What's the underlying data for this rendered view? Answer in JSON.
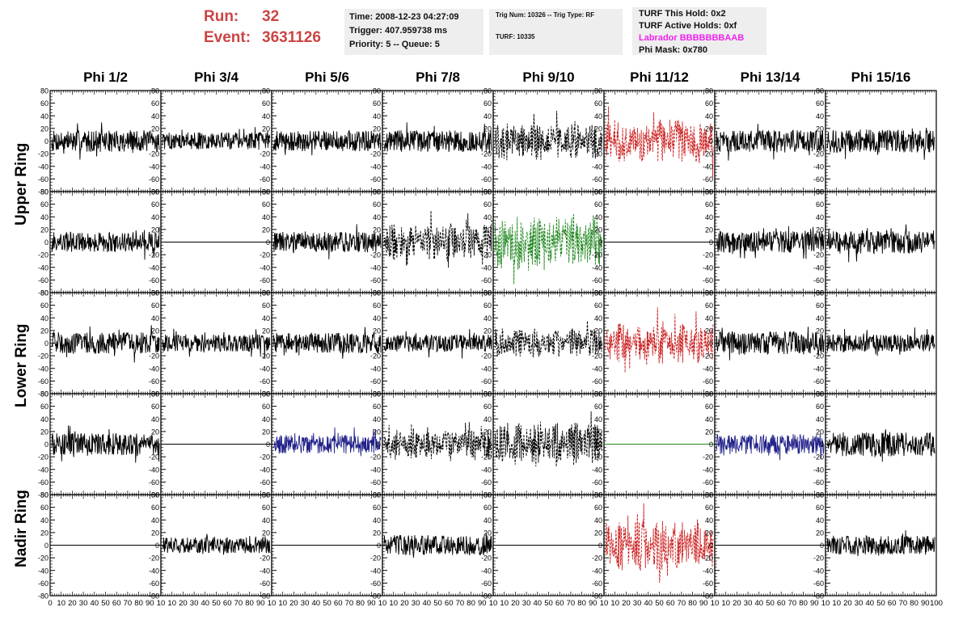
{
  "header": {
    "run_label": "Run:",
    "run_value": "32",
    "event_label": "Event:",
    "event_value": "3631126",
    "time": "Time: 2008-12-23 04:27:09",
    "trigger": "Trigger: 407.959738 ms",
    "priority": "Priority: 5 -- Queue: 5",
    "trig_num": "Trig Num: 10326 -- Trig Type: RF",
    "turf": "TURF: 10335",
    "turf_hold": "TURF This Hold: 0x2",
    "turf_active": "TURF Active Holds: 0xf",
    "labrador": "Labrador BBBBBBBAAB",
    "phi_mask": "Phi Mask: 0x780"
  },
  "phi_labels": [
    "Phi 1/2",
    "Phi 3/4",
    "Phi 5/6",
    "Phi 7/8",
    "Phi 9/10",
    "Phi 11/12",
    "Phi 13/14",
    "Phi 15/16"
  ],
  "ring_labels": [
    "Upper Ring",
    "Lower Ring",
    "Nadir Ring"
  ],
  "colors": {
    "red_text": "#cc4444",
    "magenta_text": "#ee22ee",
    "black": "#000000",
    "red": "#cc2222",
    "green": "#228822",
    "blue": "#22228a"
  },
  "chart_data": {
    "type": "line",
    "grid": false,
    "ylim": [
      -80,
      80
    ],
    "xlim": [
      0,
      100
    ],
    "y_ticks": [
      "80",
      "60",
      "40",
      "20",
      "0",
      "-20",
      "-40",
      "-60",
      "-80"
    ],
    "x_tick_labels": [
      "0",
      "10",
      "20",
      "30",
      "40",
      "50",
      "60",
      "70",
      "80",
      "90",
      "10"
    ],
    "x_tick_labels_last": [
      "10",
      "20",
      "30",
      "40",
      "50",
      "60",
      "70",
      "80",
      "90",
      "100"
    ],
    "panel_styles": [
      [
        "solid-black",
        "solid-black",
        "solid-black",
        "solid-black",
        "dashed-black",
        "dashed-red",
        "solid-black",
        "solid-black"
      ],
      [
        "solid-black",
        "flat-black",
        "solid-black",
        "dashed-black",
        "dashed-green",
        "flat-black",
        "solid-black",
        "solid-black"
      ],
      [
        "solid-black",
        "solid-black",
        "solid-black",
        "solid-black",
        "dashed-black",
        "dashed-red",
        "solid-black",
        "solid-black"
      ],
      [
        "solid-black",
        "flat-black",
        "solid-blue",
        "dashed-black",
        "dashed-black",
        "flat-green",
        "solid-blue",
        "solid-black"
      ],
      [
        "flat-black",
        "solid-black",
        "flat-black",
        "solid-black",
        "flat-black",
        "dashed-red",
        "flat-black",
        "solid-black"
      ]
    ],
    "panel_amplitudes": [
      [
        15,
        12,
        14,
        15,
        22,
        26,
        15,
        16
      ],
      [
        14,
        0,
        14,
        22,
        32,
        0,
        15,
        16
      ],
      [
        15,
        12,
        14,
        12,
        18,
        25,
        16,
        12
      ],
      [
        15,
        0,
        13,
        18,
        26,
        0,
        14,
        17
      ],
      [
        0,
        11,
        0,
        14,
        0,
        30,
        0,
        13
      ]
    ]
  }
}
